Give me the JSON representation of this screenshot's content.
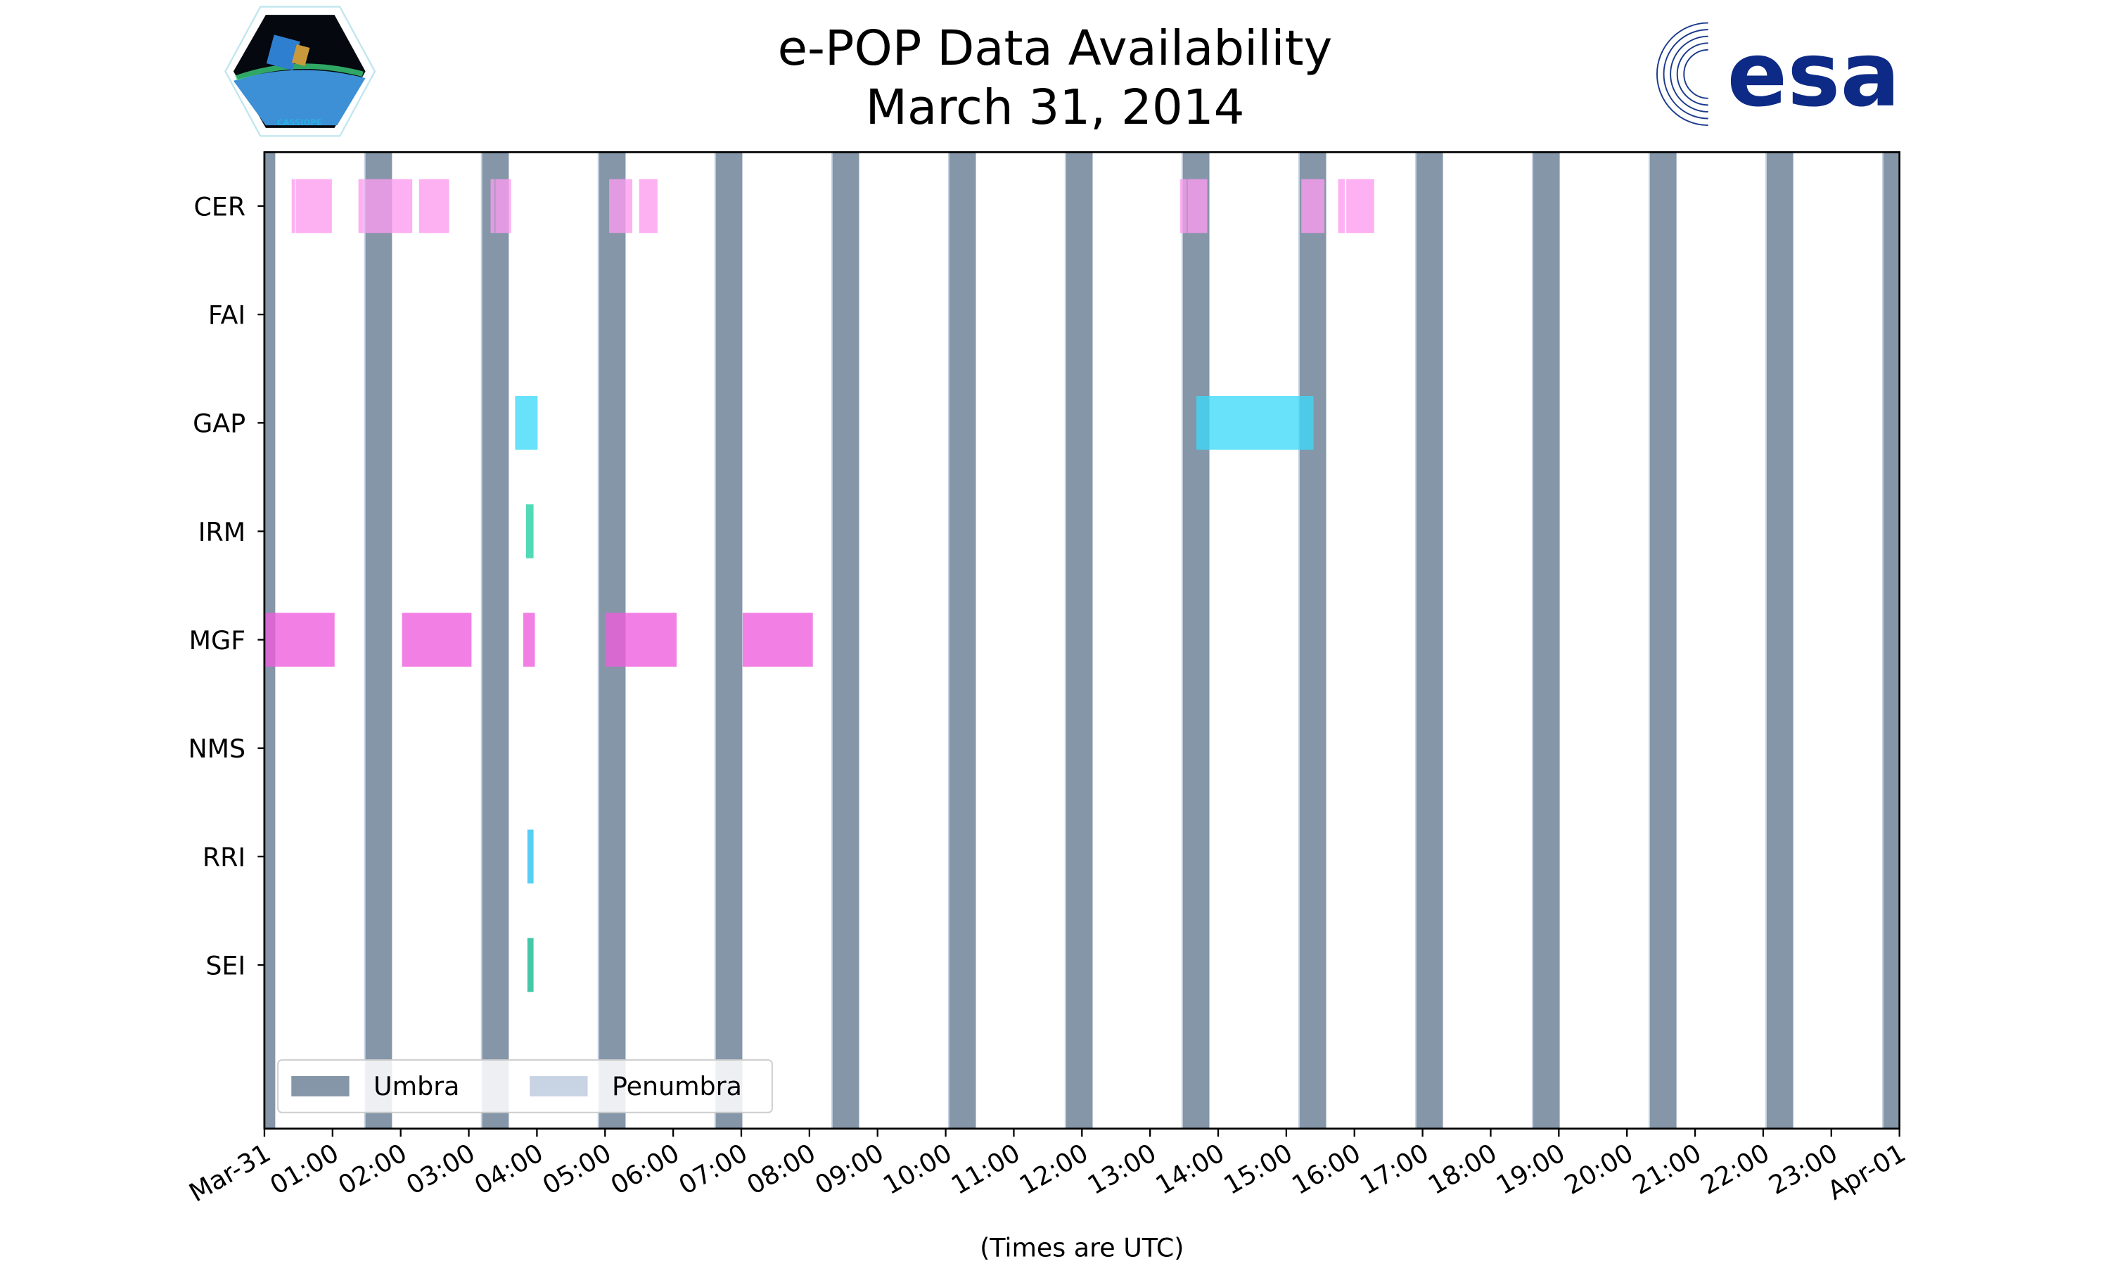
{
  "chart_data": {
    "type": "timeline",
    "title": "e-POP Data Availability",
    "subtitle": "March 31, 2014",
    "xlabel": "(Times are UTC)",
    "xlim_hours": [
      0,
      24
    ],
    "x_tick_labels": [
      "Mar-31",
      "01:00",
      "02:00",
      "03:00",
      "04:00",
      "05:00",
      "06:00",
      "07:00",
      "08:00",
      "09:00",
      "10:00",
      "11:00",
      "12:00",
      "13:00",
      "14:00",
      "15:00",
      "16:00",
      "17:00",
      "18:00",
      "19:00",
      "20:00",
      "21:00",
      "22:00",
      "23:00",
      "Apr-01"
    ],
    "categories": [
      "CER",
      "FAI",
      "GAP",
      "IRM",
      "MGF",
      "NMS",
      "RRI",
      "SEI"
    ],
    "series": [
      {
        "name": "CER",
        "color": "#fd9bf0",
        "intervals_hours": [
          [
            0.4,
            0.45
          ],
          [
            0.46,
            0.99
          ],
          [
            1.38,
            1.46
          ],
          [
            1.47,
            2.17
          ],
          [
            2.27,
            2.71
          ],
          [
            3.32,
            3.38
          ],
          [
            3.39,
            3.62
          ],
          [
            5.06,
            5.4
          ],
          [
            5.5,
            5.77
          ],
          [
            13.44,
            13.54
          ],
          [
            13.55,
            13.84
          ],
          [
            15.22,
            15.56
          ],
          [
            15.76,
            15.86
          ],
          [
            15.88,
            16.29
          ]
        ]
      },
      {
        "name": "FAI",
        "color": "#e0a0f0",
        "intervals_hours": []
      },
      {
        "name": "GAP",
        "color": "#3dd8f8",
        "intervals_hours": [
          [
            3.68,
            4.01
          ],
          [
            13.68,
            15.4
          ]
        ]
      },
      {
        "name": "IRM",
        "color": "#20d0a0",
        "intervals_hours": [
          [
            3.84,
            3.95
          ]
        ]
      },
      {
        "name": "MGF",
        "color": "#ee5cdc",
        "intervals_hours": [
          [
            0.0,
            1.03
          ],
          [
            2.02,
            3.04
          ],
          [
            3.8,
            3.97
          ],
          [
            5.0,
            6.05
          ],
          [
            7.02,
            8.05
          ]
        ]
      },
      {
        "name": "NMS",
        "color": "#a0a0f0",
        "intervals_hours": []
      },
      {
        "name": "RRI",
        "color": "#28c0f0",
        "intervals_hours": [
          [
            3.86,
            3.95
          ]
        ]
      },
      {
        "name": "SEI",
        "color": "#10b890",
        "intervals_hours": [
          [
            3.86,
            3.95
          ]
        ]
      }
    ],
    "umbra": {
      "first_start_hours": -0.231,
      "period_hours": 1.714,
      "duration_hours": 0.39,
      "color": "#8496a8"
    },
    "penumbra": {
      "color": "#c8d4e4"
    },
    "legend": {
      "position": "bottom-left",
      "entries": [
        "Umbra",
        "Penumbra"
      ]
    },
    "grid": false
  },
  "logos": {
    "left": "CASSIOPE",
    "right": "esa"
  }
}
